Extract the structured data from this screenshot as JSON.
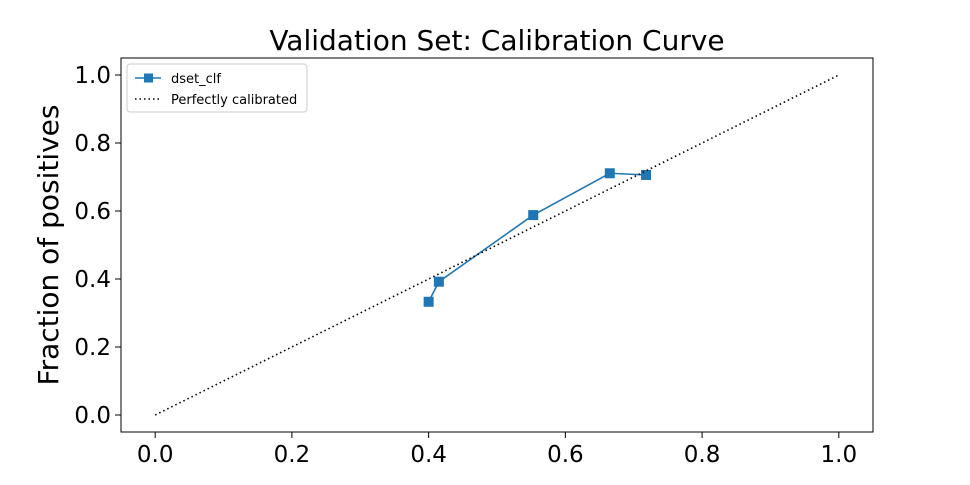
{
  "chart_data": {
    "type": "line",
    "title": "Validation Set: Calibration Curve",
    "xlabel": "",
    "ylabel": "Fraction of positives",
    "xlim": [
      -0.05,
      1.05
    ],
    "ylim": [
      -0.05,
      1.05
    ],
    "xticks": [
      "0.0",
      "0.2",
      "0.4",
      "0.6",
      "0.8",
      "1.0"
    ],
    "yticks": [
      "0.0",
      "0.2",
      "0.4",
      "0.6",
      "0.8",
      "1.0"
    ],
    "grid": false,
    "legend_position": "upper-left",
    "series": [
      {
        "name": "dset_clf",
        "color": "#1f77b4",
        "marker": "square",
        "x": [
          0.4,
          0.415,
          0.553,
          0.665,
          0.718
        ],
        "y": [
          0.333,
          0.392,
          0.588,
          0.711,
          0.706
        ]
      },
      {
        "name": "Perfectly calibrated",
        "color": "#000000",
        "style": "dotted",
        "x": [
          0.0,
          1.0
        ],
        "y": [
          0.0,
          1.0
        ]
      }
    ]
  }
}
